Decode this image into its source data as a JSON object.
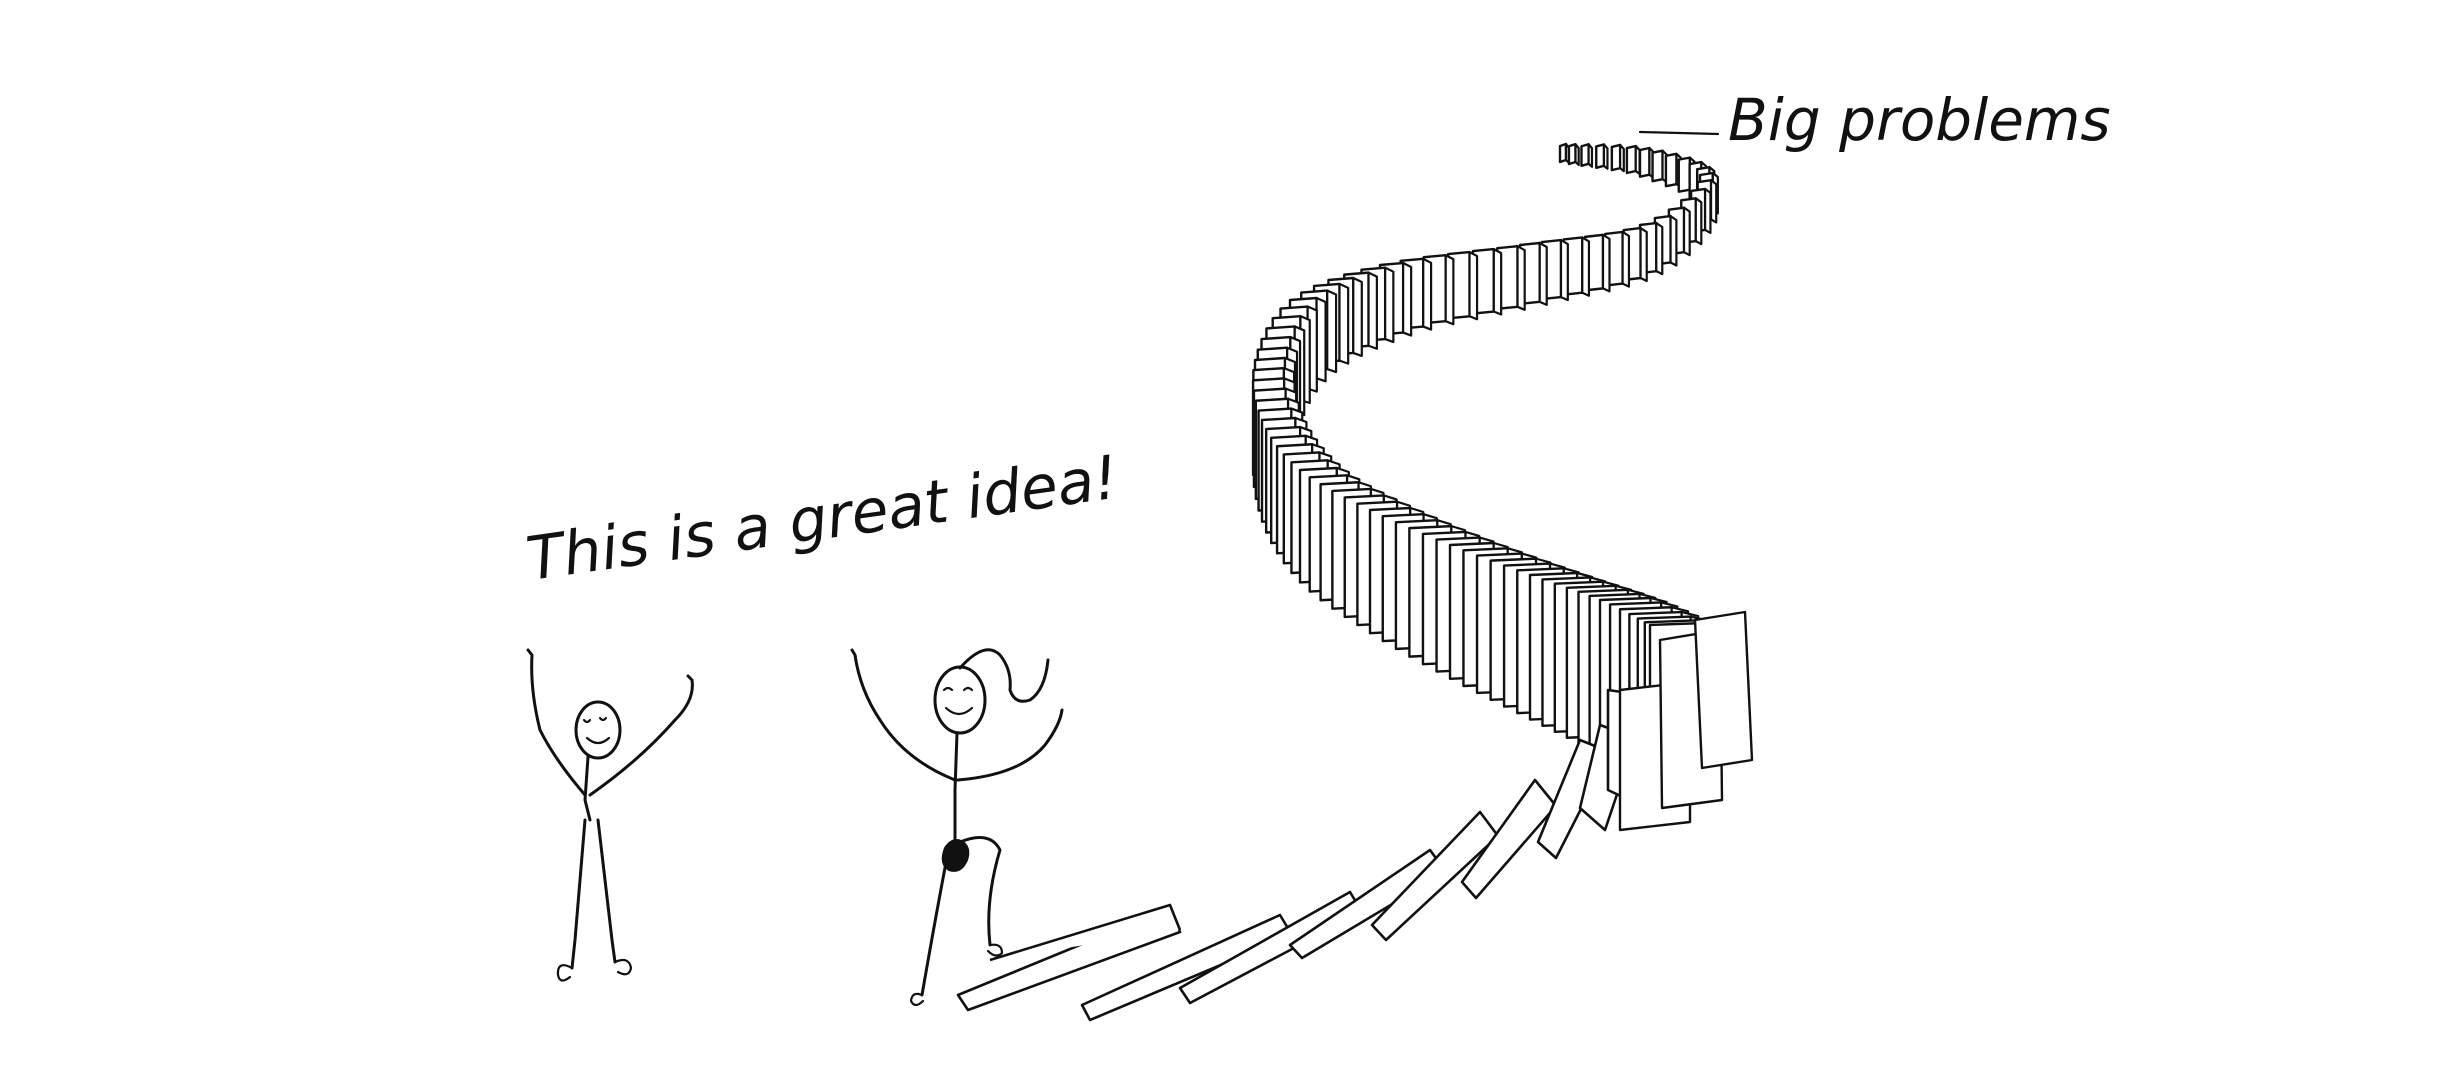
{
  "captions": {
    "speech": "This is a great idea!",
    "label": "Big problems"
  },
  "colors": {
    "ink": "#111111",
    "background": "#ffffff"
  }
}
